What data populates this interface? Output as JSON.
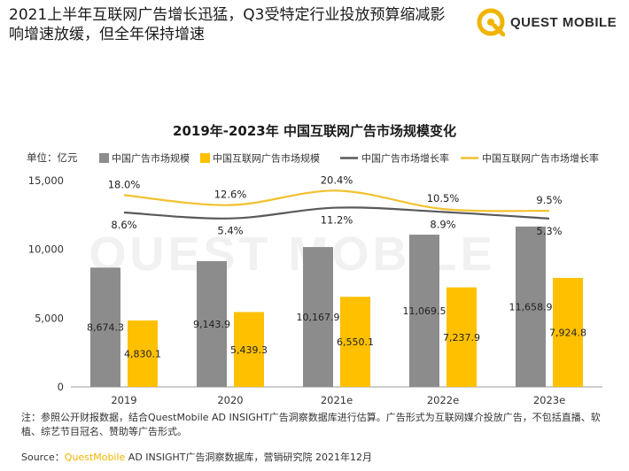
{
  "headline": {
    "line1": "2021上半年互联网广告增长迅猛，Q3受特定行业投放预算缩减影",
    "line2": "响增速放缓，但全年保持增速"
  },
  "logo": {
    "text": "QUEST MOBILE",
    "watermark": "QUEST MOBILE"
  },
  "colors": {
    "gray_bar": "#8c8c8c",
    "yellow_bar": "#ffc000",
    "gray_line": "#595959",
    "yellow_line": "#f2c12e",
    "brand_yellow": "#f0b400"
  },
  "chart_data": {
    "type": "bar",
    "title": "2019年-2023年 中国互联网广告市场规模变化",
    "unit_label": "单位：亿元",
    "categories": [
      "2019",
      "2020",
      "2021e",
      "2022e",
      "2023e"
    ],
    "ylim": [
      0,
      15000
    ],
    "yticks": [
      "0",
      "5,000",
      "10,000",
      "15,000"
    ],
    "ytick_values": [
      0,
      5000,
      10000,
      15000
    ],
    "legend_position": "top",
    "series": [
      {
        "name": "中国广告市场规模",
        "kind": "bar",
        "color": "#8c8c8c",
        "values": [
          8674.3,
          9143.9,
          10167.9,
          11069.5,
          11658.9
        ],
        "labels": [
          "8,674.3",
          "9,143.9",
          "10,167.9",
          "11,069.5",
          "11,658.9"
        ]
      },
      {
        "name": "中国互联网广告市场规模",
        "kind": "bar",
        "color": "#ffc000",
        "values": [
          4830.1,
          5439.3,
          6550.1,
          7237.9,
          7924.8
        ],
        "labels": [
          "4,830.1",
          "5,439.3",
          "6,550.1",
          "7,237.9",
          "7,924.8"
        ]
      },
      {
        "name": "中国广告市场增长率",
        "kind": "line",
        "color": "#595959",
        "values": [
          8.6,
          5.4,
          11.2,
          8.9,
          5.3
        ],
        "labels": [
          "8.6%",
          "5.4%",
          "11.2%",
          "8.9%",
          "5.3%"
        ]
      },
      {
        "name": "中国互联网广告市场增长率",
        "kind": "line",
        "color": "#f2c12e",
        "values": [
          18.0,
          12.6,
          20.4,
          10.5,
          9.5
        ],
        "labels": [
          "18.0%",
          "12.6%",
          "20.4%",
          "10.5%",
          "9.5%"
        ]
      }
    ]
  },
  "footnote": {
    "text": "注：参照公开财报数据，结合QuestMobile AD INSIGHT广告洞察数据库进行估算。广告形式为互联网媒介投放广告，不包括直播、软植、综艺节目冠名、赞助等广告形式。"
  },
  "source": {
    "prefix": "Source：",
    "brand": "QuestMobile",
    "rest": " AD INSIGHT广告洞察数据库，营销研究院 2021年12月"
  }
}
